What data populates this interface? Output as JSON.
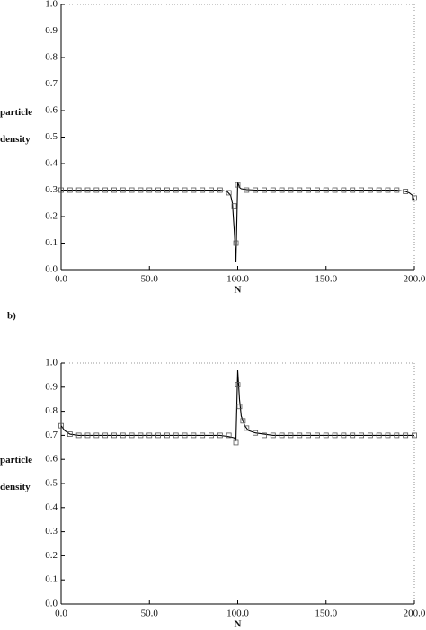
{
  "chart_data": [
    {
      "type": "line",
      "xlabel": "N",
      "ylabel_lines": [
        "particle",
        "density"
      ],
      "xlim": [
        0,
        200
      ],
      "ylim": [
        0,
        1
      ],
      "xticks": [
        {
          "value": 0,
          "label": "0.0"
        },
        {
          "value": 50,
          "label": "50.0"
        },
        {
          "value": 100,
          "label": "100.0"
        },
        {
          "value": 150,
          "label": "150.0"
        },
        {
          "value": 200,
          "label": "200.0"
        }
      ],
      "yticks": [
        {
          "value": 0,
          "label": "0.0"
        },
        0.1,
        0.2,
        0.3,
        0.4,
        0.5,
        0.6,
        0.7,
        0.8,
        0.9,
        {
          "value": 1,
          "label": "1.0"
        }
      ],
      "series": [
        {
          "style": "line",
          "color": "#000000",
          "x": [
            0,
            10,
            20,
            30,
            40,
            50,
            60,
            70,
            80,
            90,
            94,
            96,
            97,
            98,
            99,
            100,
            101,
            102,
            105,
            110,
            120,
            130,
            140,
            150,
            160,
            170,
            180,
            190,
            195,
            197,
            199,
            200
          ],
          "values": [
            0.3,
            0.3,
            0.3,
            0.3,
            0.3,
            0.3,
            0.3,
            0.3,
            0.3,
            0.3,
            0.295,
            0.28,
            0.25,
            0.15,
            0.03,
            0.33,
            0.31,
            0.305,
            0.302,
            0.3,
            0.3,
            0.3,
            0.3,
            0.3,
            0.3,
            0.3,
            0.3,
            0.3,
            0.295,
            0.29,
            0.28,
            0.26
          ]
        },
        {
          "style": "squares",
          "color": "#555555",
          "x": [
            0,
            5,
            10,
            15,
            20,
            25,
            30,
            35,
            40,
            45,
            50,
            55,
            60,
            65,
            70,
            75,
            80,
            85,
            90,
            95,
            98,
            99,
            100,
            105,
            110,
            115,
            120,
            125,
            130,
            135,
            140,
            145,
            150,
            155,
            160,
            165,
            170,
            175,
            180,
            185,
            190,
            195,
            200
          ],
          "values": [
            0.3,
            0.3,
            0.3,
            0.3,
            0.3,
            0.3,
            0.3,
            0.3,
            0.3,
            0.3,
            0.3,
            0.3,
            0.3,
            0.3,
            0.3,
            0.3,
            0.3,
            0.3,
            0.3,
            0.29,
            0.24,
            0.1,
            0.32,
            0.3,
            0.3,
            0.3,
            0.3,
            0.3,
            0.3,
            0.3,
            0.3,
            0.3,
            0.3,
            0.3,
            0.3,
            0.3,
            0.3,
            0.3,
            0.3,
            0.3,
            0.3,
            0.295,
            0.27
          ]
        }
      ]
    },
    {
      "type": "line",
      "panel_label": "b)",
      "xlabel": "N",
      "ylabel_lines": [
        "particle",
        "density"
      ],
      "xlim": [
        0,
        200
      ],
      "ylim": [
        0,
        1
      ],
      "xticks": [
        {
          "value": 0,
          "label": "0.0"
        },
        {
          "value": 50,
          "label": "50.0"
        },
        {
          "value": 100,
          "label": "100.0"
        },
        {
          "value": 150,
          "label": "150.0"
        },
        {
          "value": 200,
          "label": "200.0"
        }
      ],
      "yticks": [
        {
          "value": 0,
          "label": "0.0"
        },
        0.1,
        0.2,
        0.3,
        0.4,
        0.5,
        0.6,
        0.7,
        0.8,
        0.9,
        {
          "value": 1,
          "label": "1.0"
        }
      ],
      "series": [
        {
          "style": "line",
          "color": "#000000",
          "x": [
            0,
            2,
            5,
            10,
            20,
            30,
            40,
            50,
            60,
            70,
            80,
            90,
            95,
            98,
            99,
            100,
            101,
            102,
            104,
            106,
            110,
            115,
            120,
            130,
            140,
            150,
            160,
            170,
            180,
            190,
            200
          ],
          "values": [
            0.74,
            0.72,
            0.705,
            0.7,
            0.7,
            0.7,
            0.7,
            0.7,
            0.7,
            0.7,
            0.7,
            0.7,
            0.695,
            0.69,
            0.68,
            0.97,
            0.85,
            0.78,
            0.74,
            0.72,
            0.71,
            0.705,
            0.7,
            0.7,
            0.7,
            0.7,
            0.7,
            0.7,
            0.7,
            0.7,
            0.7
          ]
        },
        {
          "style": "squares",
          "color": "#555555",
          "x": [
            0,
            5,
            10,
            15,
            20,
            25,
            30,
            35,
            40,
            45,
            50,
            55,
            60,
            65,
            70,
            75,
            80,
            85,
            90,
            95,
            99,
            100,
            101,
            103,
            105,
            110,
            115,
            120,
            125,
            130,
            135,
            140,
            145,
            150,
            155,
            160,
            165,
            170,
            175,
            180,
            185,
            190,
            195,
            200
          ],
          "values": [
            0.74,
            0.705,
            0.7,
            0.7,
            0.7,
            0.7,
            0.7,
            0.7,
            0.7,
            0.7,
            0.7,
            0.7,
            0.7,
            0.7,
            0.7,
            0.7,
            0.7,
            0.7,
            0.7,
            0.7,
            0.67,
            0.91,
            0.82,
            0.76,
            0.73,
            0.71,
            0.7,
            0.7,
            0.7,
            0.7,
            0.7,
            0.7,
            0.7,
            0.7,
            0.7,
            0.7,
            0.7,
            0.7,
            0.7,
            0.7,
            0.7,
            0.7,
            0.7,
            0.7
          ]
        }
      ]
    }
  ]
}
